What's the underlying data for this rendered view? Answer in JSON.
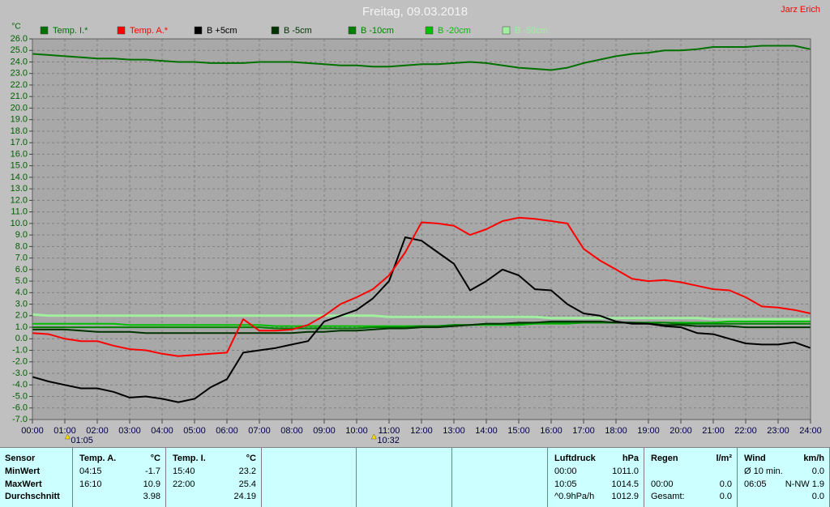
{
  "header": {
    "author": "Jarz Erich"
  },
  "chart_data": {
    "type": "line",
    "title": "Freitag, 09.03.2018",
    "y_label": "°C",
    "x": [
      0,
      0.5,
      1,
      1.5,
      2,
      2.5,
      3,
      3.5,
      4,
      4.5,
      5,
      5.5,
      6,
      6.5,
      7,
      7.5,
      8,
      8.5,
      9,
      9.5,
      10,
      10.5,
      11,
      11.5,
      12,
      12.5,
      13,
      13.5,
      14,
      14.5,
      15,
      15.5,
      16,
      16.5,
      17,
      17.5,
      18,
      18.5,
      19,
      19.5,
      20,
      20.5,
      21,
      21.5,
      22,
      22.5,
      23,
      23.5,
      24
    ],
    "series": [
      {
        "name": "Temp. I.*",
        "color": "#007000",
        "values": [
          24.7,
          24.6,
          24.5,
          24.4,
          24.3,
          24.3,
          24.2,
          24.2,
          24.1,
          24.0,
          24.0,
          23.9,
          23.9,
          23.9,
          24.0,
          24.0,
          24.0,
          23.9,
          23.8,
          23.7,
          23.7,
          23.6,
          23.6,
          23.7,
          23.8,
          23.8,
          23.9,
          24.0,
          23.9,
          23.7,
          23.5,
          23.4,
          23.3,
          23.5,
          23.9,
          24.2,
          24.5,
          24.7,
          24.8,
          25.0,
          25.0,
          25.1,
          25.3,
          25.3,
          25.3,
          25.4,
          25.4,
          25.4,
          25.1
        ]
      },
      {
        "name": "Temp. A.*",
        "color": "#ff0000",
        "values": [
          0.5,
          0.4,
          0.0,
          -0.2,
          -0.2,
          -0.6,
          -0.9,
          -1.0,
          -1.3,
          -1.5,
          -1.4,
          -1.3,
          -1.2,
          1.7,
          0.7,
          0.7,
          0.8,
          1.2,
          2.0,
          3.0,
          3.6,
          4.3,
          5.5,
          7.5,
          10.1,
          10.0,
          9.8,
          9.0,
          9.5,
          10.2,
          10.5,
          10.4,
          10.2,
          10.0,
          7.8,
          6.8,
          6.0,
          5.2,
          5.0,
          5.1,
          4.9,
          4.6,
          4.3,
          4.2,
          3.6,
          2.8,
          2.7,
          2.5,
          2.2
        ]
      },
      {
        "name": "B +5cm",
        "color": "#000000",
        "values": [
          -3.3,
          -3.7,
          -4.0,
          -4.3,
          -4.3,
          -4.6,
          -5.1,
          -5.0,
          -5.2,
          -5.5,
          -5.2,
          -4.2,
          -3.5,
          -1.2,
          -1.0,
          -0.8,
          -0.5,
          -0.2,
          1.5,
          2.0,
          2.5,
          3.5,
          5.0,
          8.8,
          8.5,
          7.5,
          6.5,
          4.2,
          5.0,
          6.0,
          5.5,
          4.3,
          4.2,
          3.0,
          2.2,
          2.0,
          1.5,
          1.3,
          1.3,
          1.1,
          1.0,
          0.5,
          0.4,
          0.0,
          -0.4,
          -0.5,
          -0.5,
          -0.3,
          -0.8
        ]
      },
      {
        "name": "B -5cm",
        "color": "#003300",
        "values": [
          0.8,
          0.8,
          0.8,
          0.7,
          0.6,
          0.6,
          0.6,
          0.5,
          0.5,
          0.5,
          0.5,
          0.5,
          0.5,
          0.5,
          0.5,
          0.5,
          0.5,
          0.6,
          0.6,
          0.7,
          0.7,
          0.8,
          0.9,
          0.9,
          1.0,
          1.0,
          1.1,
          1.2,
          1.3,
          1.3,
          1.4,
          1.4,
          1.5,
          1.5,
          1.5,
          1.5,
          1.4,
          1.4,
          1.3,
          1.2,
          1.2,
          1.1,
          1.1,
          1.1,
          1.0,
          1.0,
          1.0,
          1.0,
          1.0
        ]
      },
      {
        "name": "B -10cm",
        "color": "#008000",
        "values": [
          1.0,
          1.0,
          1.0,
          1.0,
          1.0,
          1.0,
          1.0,
          1.0,
          1.0,
          1.0,
          1.0,
          1.0,
          1.0,
          1.0,
          1.0,
          0.9,
          0.9,
          0.9,
          0.9,
          0.9,
          0.9,
          1.0,
          1.0,
          1.0,
          1.1,
          1.1,
          1.2,
          1.2,
          1.3,
          1.3,
          1.3,
          1.4,
          1.4,
          1.4,
          1.4,
          1.4,
          1.4,
          1.4,
          1.4,
          1.4,
          1.3,
          1.3,
          1.3,
          1.3,
          1.3,
          1.3,
          1.3,
          1.3,
          1.3
        ]
      },
      {
        "name": "B -20cm",
        "color": "#00c000",
        "values": [
          1.3,
          1.3,
          1.3,
          1.3,
          1.3,
          1.3,
          1.2,
          1.2,
          1.2,
          1.2,
          1.2,
          1.2,
          1.2,
          1.2,
          1.2,
          1.1,
          1.1,
          1.1,
          1.1,
          1.1,
          1.1,
          1.1,
          1.1,
          1.1,
          1.1,
          1.1,
          1.2,
          1.2,
          1.2,
          1.2,
          1.2,
          1.3,
          1.3,
          1.3,
          1.4,
          1.4,
          1.4,
          1.4,
          1.4,
          1.4,
          1.4,
          1.4,
          1.4,
          1.5,
          1.5,
          1.5,
          1.5,
          1.5,
          1.5
        ]
      },
      {
        "name": "B -50cm",
        "color": "#a0f0a0",
        "values": [
          2.1,
          2.0,
          2.0,
          2.0,
          2.0,
          2.0,
          2.0,
          2.0,
          2.0,
          2.0,
          2.0,
          2.0,
          2.0,
          2.0,
          2.0,
          2.0,
          2.0,
          2.0,
          2.0,
          2.0,
          2.0,
          2.0,
          1.9,
          1.9,
          1.9,
          1.9,
          1.9,
          1.9,
          1.9,
          1.9,
          1.9,
          1.9,
          1.8,
          1.8,
          1.8,
          1.8,
          1.8,
          1.8,
          1.8,
          1.8,
          1.8,
          1.8,
          1.7,
          1.7,
          1.7,
          1.7,
          1.7,
          1.7,
          1.7
        ]
      }
    ],
    "xlim": [
      0,
      24
    ],
    "ylim": [
      -7,
      26
    ],
    "grid": true,
    "xticks": [
      {
        "value": 0,
        "label": "00:00"
      },
      {
        "value": 1,
        "label": "01:00"
      },
      {
        "value": 2,
        "label": "02:00"
      },
      {
        "value": 3,
        "label": "03:00"
      },
      {
        "value": 4,
        "label": "04:00"
      },
      {
        "value": 5,
        "label": "05:00"
      },
      {
        "value": 6,
        "label": "06:00"
      },
      {
        "value": 7,
        "label": "07:00"
      },
      {
        "value": 8,
        "label": "08:00"
      },
      {
        "value": 9,
        "label": "09:00"
      },
      {
        "value": 10,
        "label": "10:00"
      },
      {
        "value": 11,
        "label": "11:00"
      },
      {
        "value": 12,
        "label": "12:00"
      },
      {
        "value": 13,
        "label": "13:00"
      },
      {
        "value": 14,
        "label": "14:00"
      },
      {
        "value": 15,
        "label": "15:00"
      },
      {
        "value": 16,
        "label": "16:00"
      },
      {
        "value": 17,
        "label": "17:00"
      },
      {
        "value": 18,
        "label": "18:00"
      },
      {
        "value": 19,
        "label": "19:00"
      },
      {
        "value": 20,
        "label": "20:00"
      },
      {
        "value": 21,
        "label": "21:00"
      },
      {
        "value": 22,
        "label": "22:00"
      },
      {
        "value": 23,
        "label": "23:00"
      },
      {
        "value": 24,
        "label": "24:00"
      }
    ],
    "yticks": [
      {
        "value": 26,
        "label": "26.0"
      },
      {
        "value": 25,
        "label": "25.0"
      },
      {
        "value": 24,
        "label": "24.0"
      },
      {
        "value": 23,
        "label": "23.0"
      },
      {
        "value": 22,
        "label": "22.0"
      },
      {
        "value": 21,
        "label": "21.0"
      },
      {
        "value": 20,
        "label": "20.0"
      },
      {
        "value": 19,
        "label": "19.0"
      },
      {
        "value": 18,
        "label": "18.0"
      },
      {
        "value": 17,
        "label": "17.0"
      },
      {
        "value": 16,
        "label": "16.0"
      },
      {
        "value": 15,
        "label": "15.0"
      },
      {
        "value": 14,
        "label": "14.0"
      },
      {
        "value": 13,
        "label": "13.0"
      },
      {
        "value": 12,
        "label": "12.0"
      },
      {
        "value": 11,
        "label": "11.0"
      },
      {
        "value": 10,
        "label": "10.0"
      },
      {
        "value": 9,
        "label": "9.0"
      },
      {
        "value": 8,
        "label": "8.0"
      },
      {
        "value": 7,
        "label": "7.0"
      },
      {
        "value": 6,
        "label": "6.0"
      },
      {
        "value": 5,
        "label": "5.0"
      },
      {
        "value": 4,
        "label": "4.0"
      },
      {
        "value": 3,
        "label": "3.0"
      },
      {
        "value": 2,
        "label": "2.0"
      },
      {
        "value": 1,
        "label": "1.0"
      },
      {
        "value": 0,
        "label": "0.0"
      },
      {
        "value": -1,
        "label": "-1.0"
      },
      {
        "value": -2,
        "label": "-2.0"
      },
      {
        "value": -3,
        "label": "-3.0"
      },
      {
        "value": -4,
        "label": "-4.0"
      },
      {
        "value": -5,
        "label": "-5.0"
      },
      {
        "value": -6,
        "label": "-6.0"
      },
      {
        "value": -7,
        "label": "-7.0"
      }
    ],
    "markers": [
      {
        "x": 1.0833,
        "label": "01:05"
      },
      {
        "x": 10.5333,
        "label": "10:32"
      }
    ]
  },
  "table": {
    "columns": [
      {
        "header": [
          "Sensor"
        ],
        "rows": [
          [
            "MinWert"
          ],
          [
            "MaxWert"
          ],
          [
            "Durchschnitt"
          ]
        ]
      },
      {
        "header": [
          "Temp. A.",
          "°C"
        ],
        "rows": [
          [
            "04:15",
            "-1.7"
          ],
          [
            "16:10",
            "10.9"
          ],
          [
            null,
            "3.98"
          ]
        ]
      },
      {
        "header": [
          "Temp. I.",
          "°C"
        ],
        "rows": [
          [
            "15:40",
            "23.2"
          ],
          [
            "22:00",
            "25.4"
          ],
          [
            null,
            "24.19"
          ]
        ]
      },
      {
        "header": [
          "Luftdruck",
          "hPa"
        ],
        "rows": [
          [
            "00:00",
            "1011.0"
          ],
          [
            "10:05",
            "1014.5"
          ],
          [
            "^0.9hPa/h",
            "1012.9"
          ]
        ]
      },
      {
        "header": [
          "Regen",
          "l/m²"
        ],
        "rows": [
          [
            null,
            null
          ],
          [
            "00:00",
            "0.0"
          ],
          [
            "Gesamt:",
            "0.0"
          ]
        ]
      },
      {
        "header": [
          "Wind",
          "km/h"
        ],
        "rows": [
          [
            "Ø 10 min.",
            "0.0"
          ],
          [
            "06:05",
            "N-NW 1.9"
          ],
          [
            null,
            "0.0"
          ]
        ]
      }
    ]
  }
}
